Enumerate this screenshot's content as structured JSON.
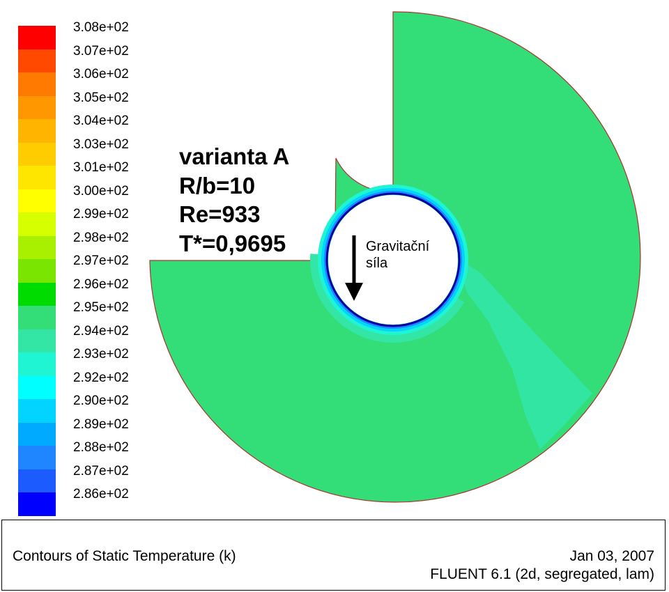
{
  "legend": {
    "ticks": [
      "3.08e+02",
      "3.07e+02",
      "3.06e+02",
      "3.05e+02",
      "3.04e+02",
      "3.03e+02",
      "3.01e+02",
      "3.00e+02",
      "2.99e+02",
      "2.98e+02",
      "2.97e+02",
      "2.96e+02",
      "2.95e+02",
      "2.94e+02",
      "2.93e+02",
      "2.92e+02",
      "2.90e+02",
      "2.89e+02",
      "2.88e+02",
      "2.87e+02",
      "2.86e+02"
    ],
    "colors": [
      "#ff0000",
      "#ff4800",
      "#ff7a00",
      "#ff9800",
      "#ffb400",
      "#ffcc00",
      "#ffe600",
      "#ffff00",
      "#d6ff00",
      "#a8f000",
      "#7ae600",
      "#00dc00",
      "#33dd77",
      "#33e6a6",
      "#1ff5d2",
      "#00ffff",
      "#00d4ff",
      "#00aaff",
      "#1f86ff",
      "#1c5cff",
      "#0000ff"
    ]
  },
  "annotation": {
    "line1": "varianta A",
    "line2": "R/b=10",
    "line3": "Re=933",
    "line4": "T*=0,9695"
  },
  "gravity": {
    "label_line1": "Gravitační",
    "label_line2": "síla"
  },
  "footer": {
    "caption": "Contours of Static Temperature (k)",
    "date": "Jan 03, 2007",
    "solver": "FLUENT 6.1 (2d, segregated, lam)"
  },
  "colors": {
    "field": "#33dd77",
    "outline": "#b03030",
    "cool_band": "#33e6a6",
    "cylinder_edge": "#0000ff"
  }
}
